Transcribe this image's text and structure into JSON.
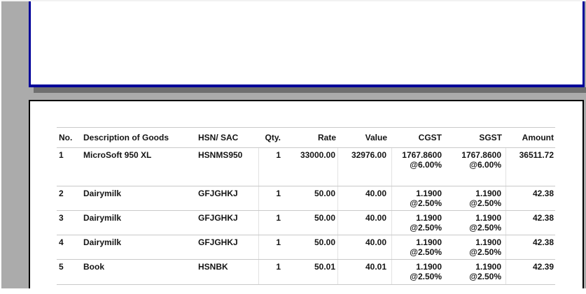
{
  "colors": {
    "bg": "#ababab",
    "blue": "#000099",
    "black": "#000000",
    "shadow": "#6f6f6f",
    "rule": "#c9c9c9",
    "sep": "#e2e2e2",
    "text": "#141414"
  },
  "invoice": {
    "headers": {
      "no": "No.",
      "description": "Description of Goods",
      "hsn": "HSN/ SAC",
      "qty": "Qty.",
      "rate": "Rate",
      "value": "Value",
      "cgst": "CGST",
      "sgst": "SGST",
      "amount": "Amount"
    },
    "rows": [
      {
        "no": "1",
        "description": "MicroSoft 950 XL",
        "hsn": "HSNMS950",
        "qty": "1",
        "rate": "33000.00",
        "value": "32976.00",
        "cgst": "1767.8600",
        "cgst_rate": "@6.00%",
        "sgst": "1767.8600",
        "sgst_rate": "@6.00%",
        "amount": "36511.72"
      },
      {
        "no": "2",
        "description": "Dairymilk",
        "hsn": "GFJGHKJ",
        "qty": "1",
        "rate": "50.00",
        "value": "40.00",
        "cgst": "1.1900",
        "cgst_rate": "@2.50%",
        "sgst": "1.1900",
        "sgst_rate": "@2.50%",
        "amount": "42.38"
      },
      {
        "no": "3",
        "description": "Dairymilk",
        "hsn": "GFJGHKJ",
        "qty": "1",
        "rate": "50.00",
        "value": "40.00",
        "cgst": "1.1900",
        "cgst_rate": "@2.50%",
        "sgst": "1.1900",
        "sgst_rate": "@2.50%",
        "amount": "42.38"
      },
      {
        "no": "4",
        "description": "Dairymilk",
        "hsn": "GFJGHKJ",
        "qty": "1",
        "rate": "50.00",
        "value": "40.00",
        "cgst": "1.1900",
        "cgst_rate": "@2.50%",
        "sgst": "1.1900",
        "sgst_rate": "@2.50%",
        "amount": "42.38"
      },
      {
        "no": "5",
        "description": "Book",
        "hsn": "HSNBK",
        "qty": "1",
        "rate": "50.01",
        "value": "40.01",
        "cgst": "1.1900",
        "cgst_rate": "@2.50%",
        "sgst": "1.1900",
        "sgst_rate": "@2.50%",
        "amount": "42.39"
      }
    ]
  }
}
